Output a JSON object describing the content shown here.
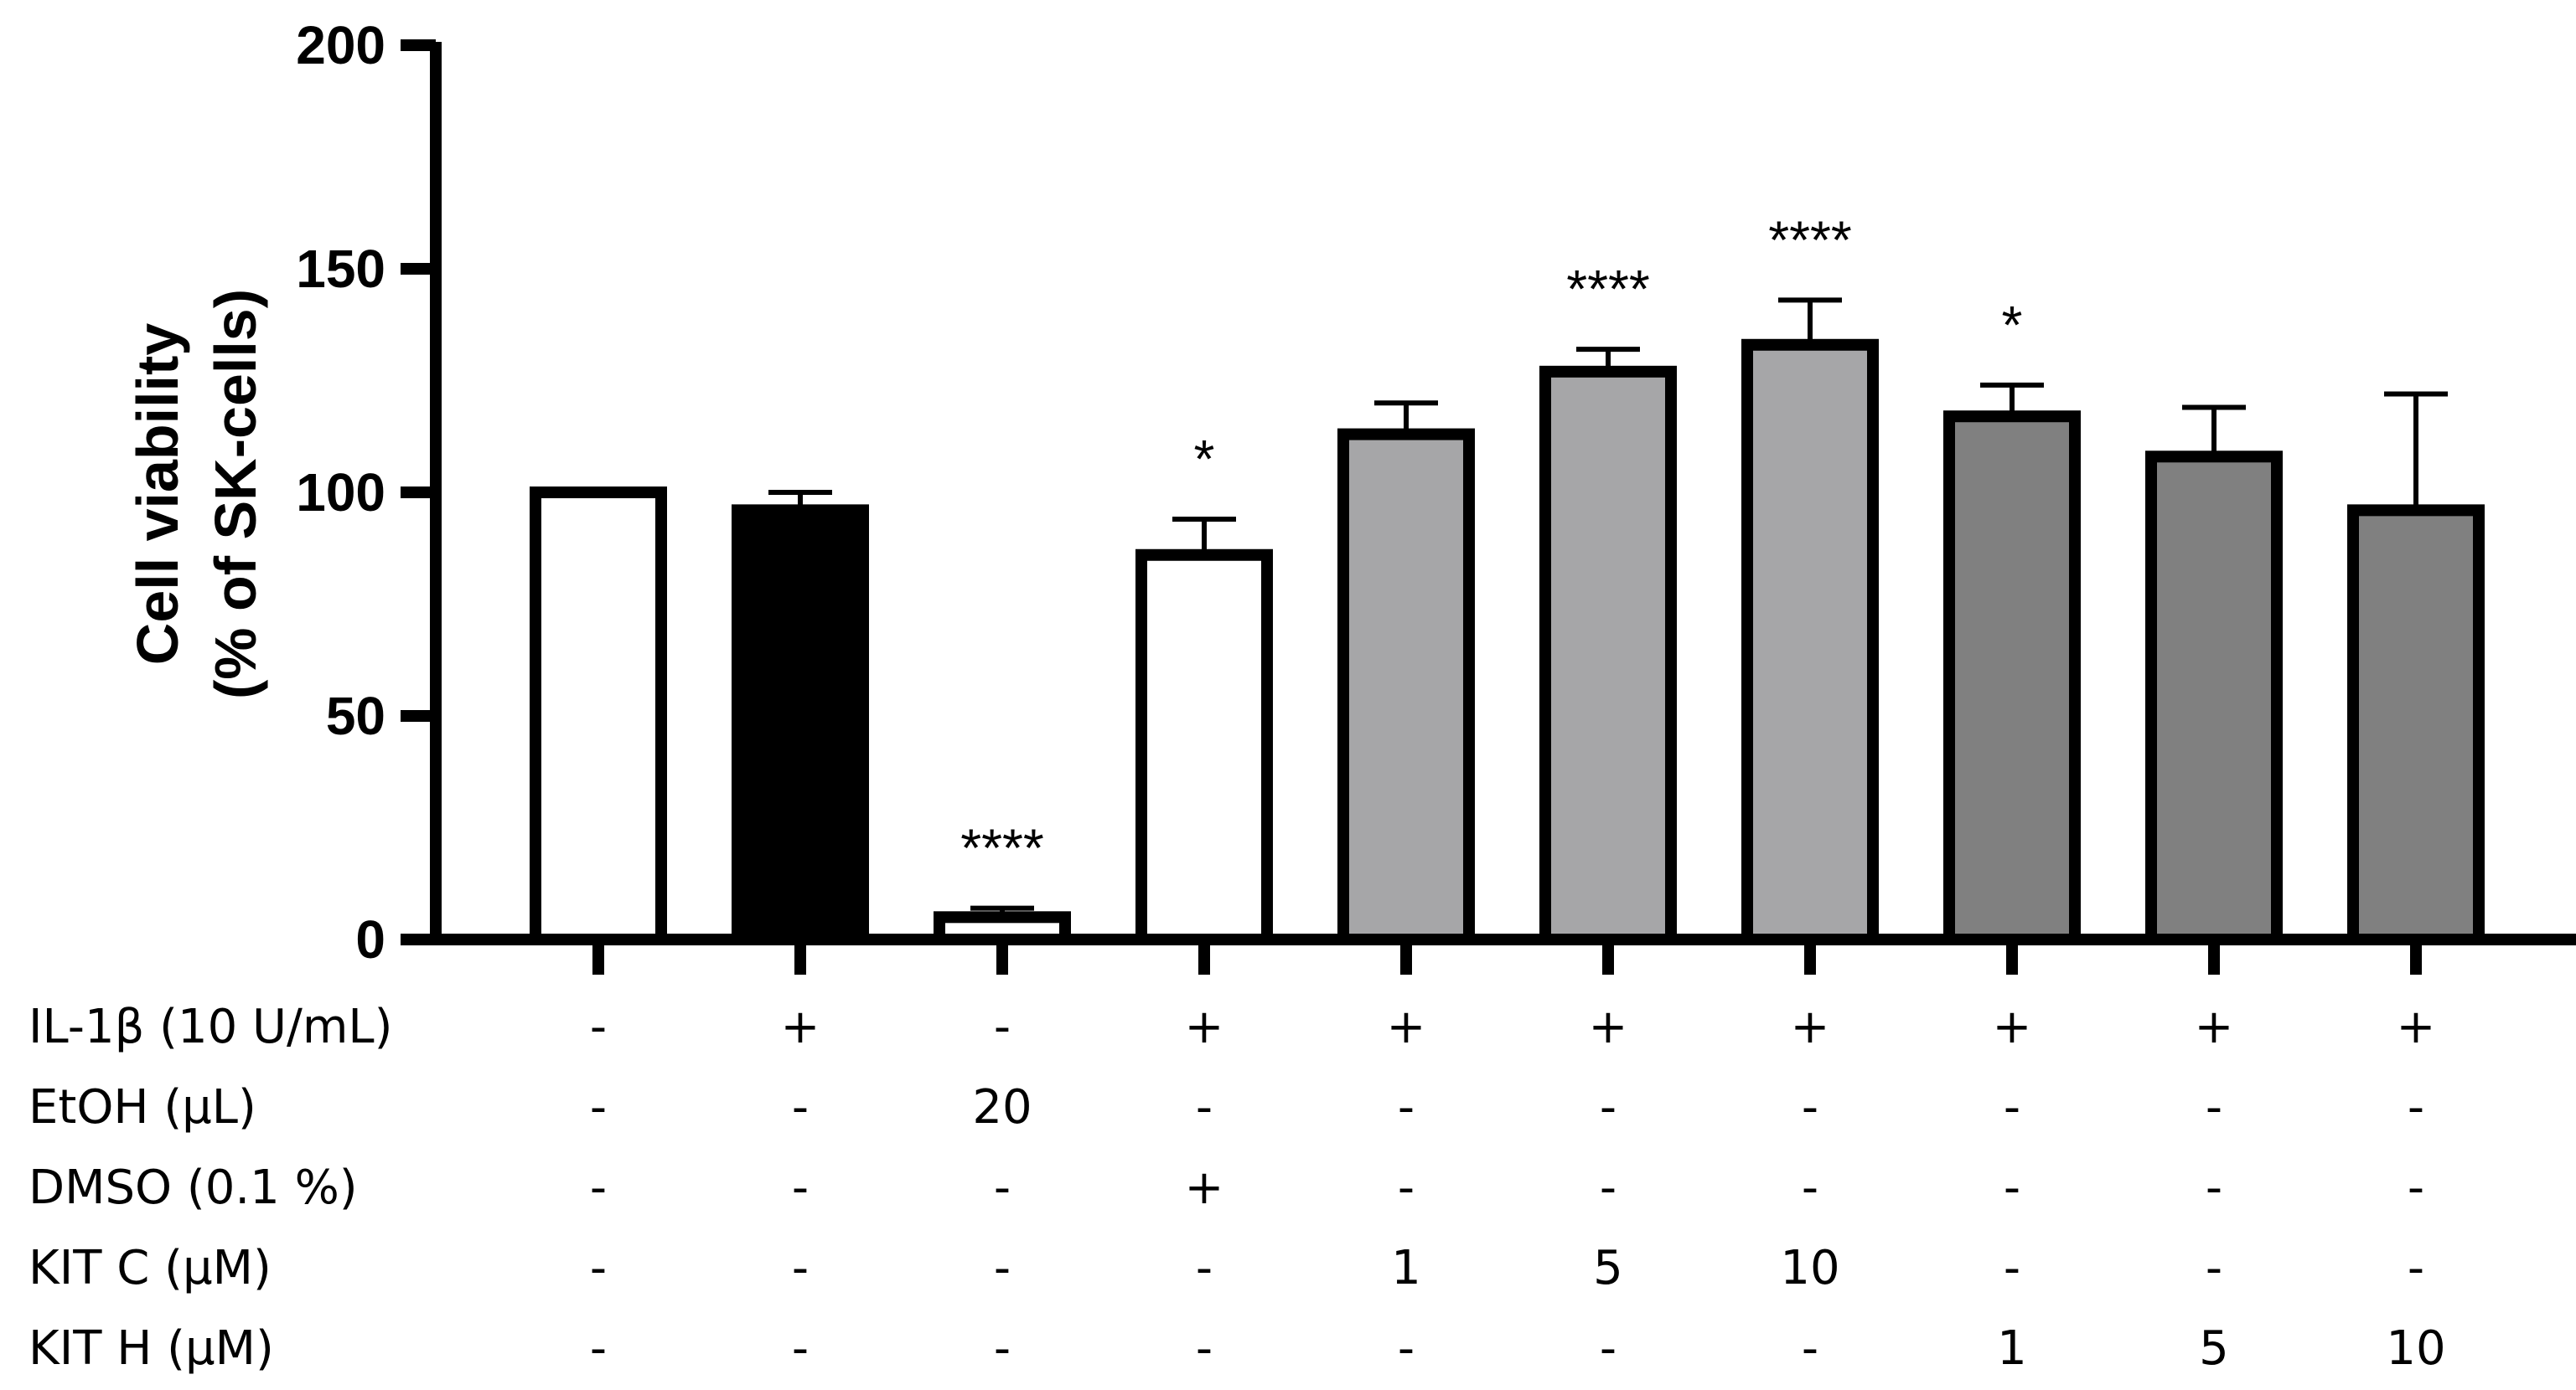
{
  "chart_data": {
    "type": "bar",
    "ylabel_line1": "Cell viability",
    "ylabel_line2": "(% of SK-cells)",
    "ylim": [
      0,
      200
    ],
    "yticks": [
      0,
      50,
      100,
      150,
      200
    ],
    "bars": [
      {
        "value": 100,
        "error": 0,
        "fill": "#ffffff",
        "sig": ""
      },
      {
        "value": 96,
        "error": 4,
        "fill": "#000000",
        "sig": ""
      },
      {
        "value": 5,
        "error": 2,
        "fill": "#ffffff",
        "sig": "****"
      },
      {
        "value": 86,
        "error": 8,
        "fill": "#ffffff",
        "sig": "*"
      },
      {
        "value": 113,
        "error": 7,
        "fill": "#a6a6a8",
        "sig": ""
      },
      {
        "value": 127,
        "error": 5,
        "fill": "#a6a6a8",
        "sig": "****"
      },
      {
        "value": 133,
        "error": 10,
        "fill": "#a6a6a8",
        "sig": "****"
      },
      {
        "value": 117,
        "error": 7,
        "fill": "#808080",
        "sig": "*"
      },
      {
        "value": 108,
        "error": 11,
        "fill": "#808080",
        "sig": ""
      },
      {
        "value": 96,
        "error": 26,
        "fill": "#808080",
        "sig": ""
      }
    ],
    "conditions": [
      {
        "label": "IL-1β (10 U/mL)",
        "values": [
          "-",
          "+",
          "-",
          "+",
          "+",
          "+",
          "+",
          "+",
          "+",
          "+"
        ]
      },
      {
        "label": "EtOH (μL)",
        "values": [
          "-",
          "-",
          "20",
          "-",
          "-",
          "-",
          "-",
          "-",
          "-",
          "-"
        ]
      },
      {
        "label": "DMSO (0.1 %)",
        "values": [
          "-",
          "-",
          "-",
          "+",
          "-",
          "-",
          "-",
          "-",
          "-",
          "-"
        ]
      },
      {
        "label": "KIT C (μM)",
        "values": [
          "-",
          "-",
          "-",
          "-",
          "1",
          "5",
          "10",
          "-",
          "-",
          "-"
        ]
      },
      {
        "label": "KIT H (μM)",
        "values": [
          "-",
          "-",
          "-",
          "-",
          "-",
          "-",
          "-",
          "1",
          "5",
          "10"
        ]
      }
    ]
  }
}
